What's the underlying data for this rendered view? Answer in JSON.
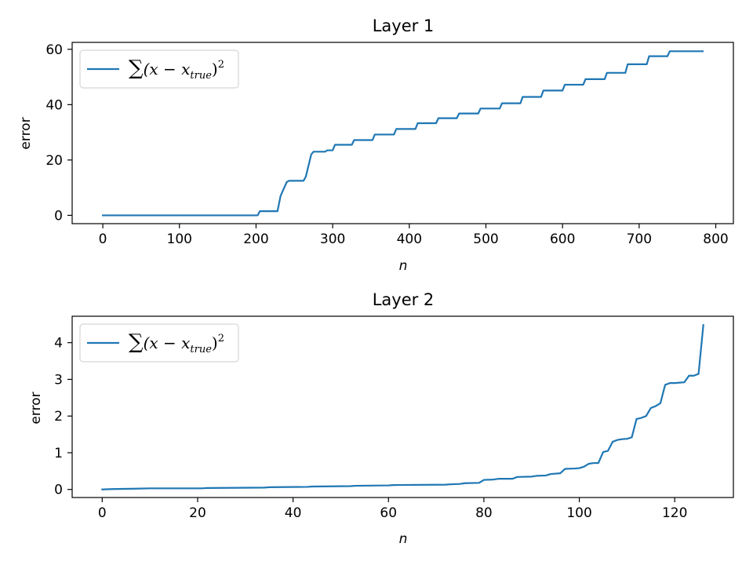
{
  "chart_data": [
    {
      "type": "line",
      "title": "Layer 1",
      "xlabel": "n",
      "ylabel": "error",
      "xlim": [
        -40,
        823
      ],
      "ylim": [
        -3,
        62.5
      ],
      "xticks": [
        0,
        100,
        200,
        300,
        400,
        500,
        600,
        700,
        800
      ],
      "yticks": [
        0,
        20,
        40,
        60
      ],
      "xtick_labels": [
        "0",
        "100",
        "200",
        "300",
        "400",
        "500",
        "600",
        "700",
        "800"
      ],
      "ytick_labels": [
        "0",
        "20",
        "40",
        "60"
      ],
      "legend": "upper left",
      "grid": false,
      "color": "#1f77b4",
      "series": [
        {
          "legend": {
            "sum": "∑",
            "open": "(x − x",
            "sub": "true",
            "close": ")",
            "sup": "2"
          },
          "x": [
            0,
            202,
            205,
            228,
            232,
            240,
            243,
            262,
            265,
            272,
            275,
            290,
            293,
            300,
            303,
            325,
            328,
            352,
            355,
            380,
            383,
            408,
            411,
            435,
            438,
            462,
            465,
            490,
            493,
            518,
            521,
            545,
            548,
            572,
            575,
            600,
            603,
            627,
            630,
            655,
            658,
            682,
            685,
            710,
            713,
            737,
            740,
            783
          ],
          "y": [
            0,
            0,
            1.5,
            1.5,
            7,
            12,
            12.5,
            12.5,
            14,
            22,
            23,
            23,
            23.5,
            23.5,
            25.5,
            25.5,
            27.2,
            27.2,
            29.2,
            29.2,
            31.2,
            31.2,
            33.3,
            33.3,
            35.1,
            35.1,
            36.8,
            36.8,
            38.6,
            38.6,
            40.5,
            40.5,
            42.8,
            42.8,
            45.1,
            45.1,
            47.2,
            47.2,
            49.2,
            49.2,
            51.5,
            51.5,
            54.6,
            54.6,
            57.5,
            57.5,
            59.3,
            59.3
          ]
        }
      ]
    },
    {
      "type": "line",
      "title": "Layer 2",
      "xlabel": "n",
      "ylabel": "error",
      "xlim": [
        -6.3,
        132.3
      ],
      "ylim": [
        -0.22,
        4.72
      ],
      "xticks": [
        0,
        20,
        40,
        60,
        80,
        100,
        120
      ],
      "yticks": [
        0,
        1,
        2,
        3,
        4
      ],
      "xtick_labels": [
        "0",
        "20",
        "40",
        "60",
        "80",
        "100",
        "120"
      ],
      "ytick_labels": [
        "0",
        "1",
        "2",
        "3",
        "4"
      ],
      "legend": "upper left",
      "grid": false,
      "color": "#1f77b4",
      "series": [
        {
          "legend": {
            "sum": "∑",
            "open": "(x − x",
            "sub": "true",
            "close": ")",
            "sup": "2"
          },
          "x": [
            0,
            2,
            7,
            10,
            21,
            22,
            34,
            35,
            43,
            44,
            52,
            53,
            60,
            61,
            72,
            73,
            75,
            76,
            79,
            80,
            82,
            83,
            86,
            87,
            90,
            91,
            93,
            94,
            96,
            97,
            99,
            100,
            101,
            102,
            103,
            104,
            105,
            106,
            107,
            108,
            109,
            110,
            111,
            112,
            113,
            114,
            115,
            116,
            117,
            118,
            119,
            120,
            121,
            122,
            123,
            124,
            125,
            126
          ],
          "y": [
            0,
            0.01,
            0.02,
            0.03,
            0.03,
            0.04,
            0.05,
            0.06,
            0.07,
            0.08,
            0.09,
            0.1,
            0.11,
            0.12,
            0.13,
            0.14,
            0.15,
            0.17,
            0.18,
            0.26,
            0.27,
            0.29,
            0.29,
            0.34,
            0.35,
            0.37,
            0.38,
            0.42,
            0.44,
            0.56,
            0.57,
            0.58,
            0.62,
            0.7,
            0.72,
            0.72,
            1.02,
            1.05,
            1.3,
            1.35,
            1.37,
            1.38,
            1.42,
            1.92,
            1.95,
            2.0,
            2.22,
            2.27,
            2.35,
            2.85,
            2.9,
            2.9,
            2.91,
            2.92,
            3.1,
            3.1,
            3.15,
            4.48
          ]
        }
      ]
    }
  ]
}
